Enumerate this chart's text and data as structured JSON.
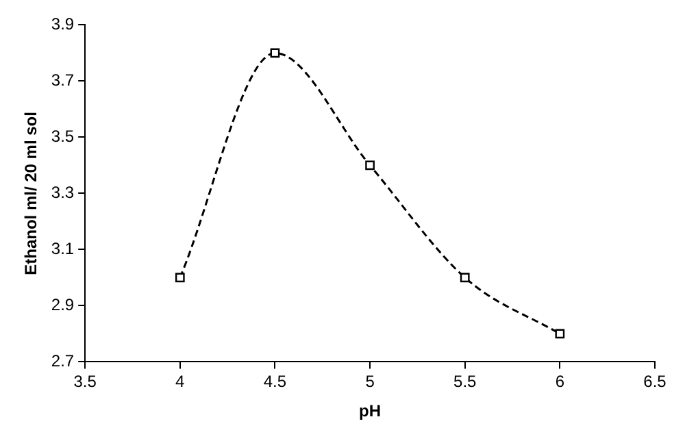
{
  "chart_data": {
    "type": "line",
    "xlabel": "pH",
    "ylabel": "Ethanol ml/ 20 ml sol",
    "x": [
      4,
      4.5,
      5,
      5.5,
      6
    ],
    "series": [
      {
        "color": "#000000",
        "values": [
          3.0,
          3.8,
          3.4,
          3.0,
          2.8
        ]
      }
    ],
    "xlim": [
      3.5,
      6.5
    ],
    "xticks": [
      3.5,
      4,
      4.5,
      5,
      5.5,
      6,
      6.5
    ],
    "ylim": [
      2.7,
      3.9
    ],
    "yticks": [
      2.7,
      2.9,
      3.1,
      3.3,
      3.5,
      3.7,
      3.9
    ],
    "marker": "square",
    "line_style": "dashed"
  }
}
